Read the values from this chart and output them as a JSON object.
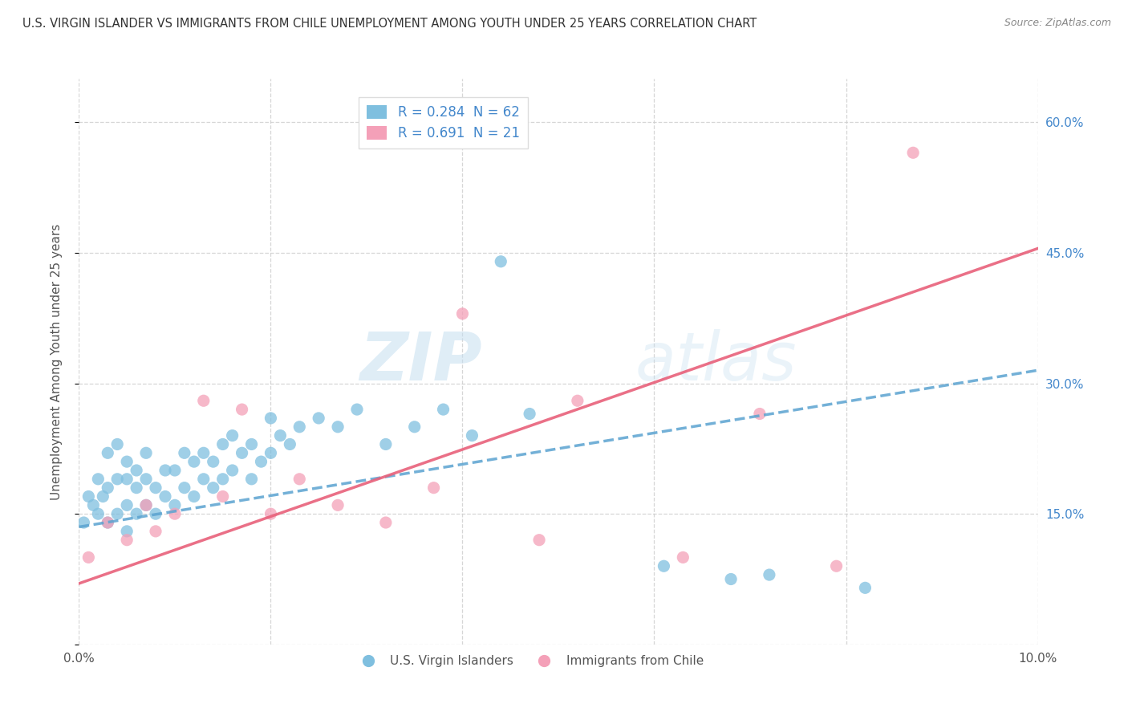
{
  "title": "U.S. VIRGIN ISLANDER VS IMMIGRANTS FROM CHILE UNEMPLOYMENT AMONG YOUTH UNDER 25 YEARS CORRELATION CHART",
  "source": "Source: ZipAtlas.com",
  "ylabel": "Unemployment Among Youth under 25 years",
  "xlim": [
    0.0,
    0.1
  ],
  "ylim": [
    0.0,
    0.65
  ],
  "xticks": [
    0.0,
    0.02,
    0.04,
    0.06,
    0.08,
    0.1
  ],
  "xtick_labels": [
    "0.0%",
    "",
    "",
    "",
    "",
    "10.0%"
  ],
  "yticks": [
    0.0,
    0.15,
    0.3,
    0.45,
    0.6
  ],
  "ytick_labels": [
    "",
    "15.0%",
    "30.0%",
    "45.0%",
    "60.0%"
  ],
  "blue_color": "#7fbfdf",
  "pink_color": "#f4a0b8",
  "blue_line_color": "#5ba3d0",
  "pink_line_color": "#e8607a",
  "blue_text_color": "#4488cc",
  "R_blue": "0.284",
  "N_blue": "62",
  "R_pink": "0.691",
  "N_pink": "21",
  "background_color": "#ffffff",
  "grid_color": "#cccccc",
  "blue_x": [
    0.0005,
    0.001,
    0.0015,
    0.002,
    0.002,
    0.0025,
    0.003,
    0.003,
    0.003,
    0.004,
    0.004,
    0.004,
    0.005,
    0.005,
    0.005,
    0.005,
    0.006,
    0.006,
    0.006,
    0.007,
    0.007,
    0.007,
    0.008,
    0.008,
    0.009,
    0.009,
    0.01,
    0.01,
    0.011,
    0.011,
    0.012,
    0.012,
    0.013,
    0.013,
    0.014,
    0.014,
    0.015,
    0.015,
    0.016,
    0.016,
    0.017,
    0.018,
    0.018,
    0.019,
    0.02,
    0.02,
    0.021,
    0.022,
    0.023,
    0.025,
    0.027,
    0.029,
    0.032,
    0.035,
    0.038,
    0.041,
    0.044,
    0.047,
    0.061,
    0.068,
    0.072,
    0.082
  ],
  "blue_y": [
    0.14,
    0.17,
    0.16,
    0.15,
    0.19,
    0.17,
    0.14,
    0.18,
    0.22,
    0.15,
    0.19,
    0.23,
    0.13,
    0.16,
    0.19,
    0.21,
    0.15,
    0.18,
    0.2,
    0.16,
    0.19,
    0.22,
    0.15,
    0.18,
    0.17,
    0.2,
    0.16,
    0.2,
    0.18,
    0.22,
    0.17,
    0.21,
    0.19,
    0.22,
    0.18,
    0.21,
    0.19,
    0.23,
    0.2,
    0.24,
    0.22,
    0.19,
    0.23,
    0.21,
    0.22,
    0.26,
    0.24,
    0.23,
    0.25,
    0.26,
    0.25,
    0.27,
    0.23,
    0.25,
    0.27,
    0.24,
    0.44,
    0.265,
    0.09,
    0.075,
    0.08,
    0.065
  ],
  "pink_x": [
    0.001,
    0.003,
    0.005,
    0.007,
    0.008,
    0.01,
    0.013,
    0.015,
    0.017,
    0.02,
    0.023,
    0.027,
    0.032,
    0.037,
    0.04,
    0.048,
    0.052,
    0.063,
    0.071,
    0.079,
    0.087
  ],
  "pink_y": [
    0.1,
    0.14,
    0.12,
    0.16,
    0.13,
    0.15,
    0.28,
    0.17,
    0.27,
    0.15,
    0.19,
    0.16,
    0.14,
    0.18,
    0.38,
    0.12,
    0.28,
    0.1,
    0.265,
    0.09,
    0.565
  ],
  "blue_line_x0": 0.0,
  "blue_line_y0": 0.135,
  "blue_line_x1": 0.1,
  "blue_line_y1": 0.315,
  "pink_line_x0": 0.0,
  "pink_line_y0": 0.07,
  "pink_line_x1": 0.1,
  "pink_line_y1": 0.455
}
